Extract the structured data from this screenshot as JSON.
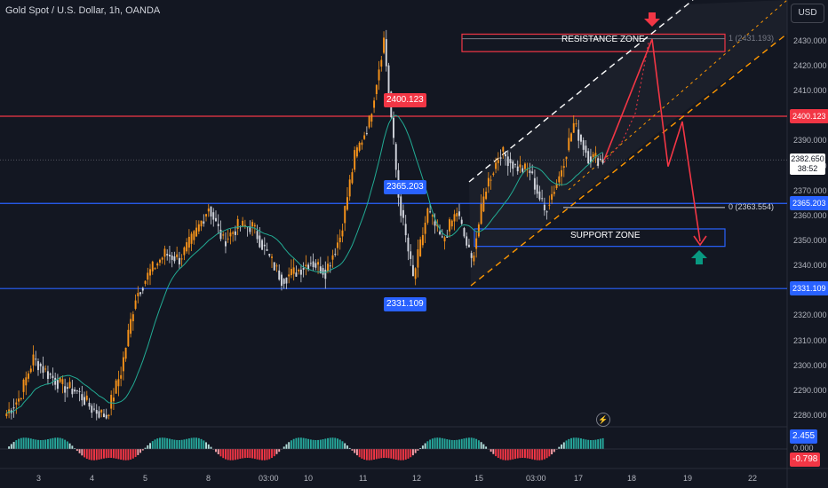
{
  "header": {
    "title": "Gold Spot / U.S. Dollar, 1h, OANDA"
  },
  "currency_button": "USD",
  "price_axis": {
    "ticks": [
      "2430.000",
      "2420.000",
      "2410.000",
      "2400.000",
      "2390.000",
      "2380.000",
      "2370.000",
      "2360.000",
      "2350.000",
      "2340.000",
      "2330.000",
      "2320.000",
      "2310.000",
      "2300.000",
      "2290.000",
      "2280.000"
    ],
    "last_price": "2382.650",
    "countdown": "38:52",
    "level_tags": [
      {
        "label": "2400.123",
        "color": "#f23645"
      },
      {
        "label": "2365.203",
        "color": "#2962ff"
      },
      {
        "label": "2331.109",
        "color": "#2962ff"
      }
    ]
  },
  "time_axis": {
    "labels": [
      "3",
      "4",
      "5",
      "8",
      "03:00",
      "10",
      "11",
      "12",
      "15",
      "03:00",
      "17",
      "18",
      "19",
      "22"
    ]
  },
  "level_labels": [
    {
      "label": "2400.123",
      "color": "#f23645"
    },
    {
      "label": "2365.203",
      "color": "#2962ff"
    },
    {
      "label": "2331.109",
      "color": "#2962ff"
    }
  ],
  "zones": {
    "resistance": "RESISTANCE ZONE",
    "support": "SUPPORT ZONE"
  },
  "fib": {
    "top": "1 (2431.193)",
    "bottom": "0 (2363.554)"
  },
  "oscillator": {
    "value_pos": "2.455",
    "zero": "0.000",
    "value_neg": "-0.798"
  },
  "colors": {
    "background": "#131722",
    "bull_candle": "#f7931a",
    "bear_candle": "#d1d4dc",
    "resistance": "#f23645",
    "support": "#2962ff",
    "ma": "#22ab94",
    "channel_upper": "#ffffff",
    "channel_lower": "#ff9800",
    "projection": "#f23645",
    "arrow_down": "#f23645",
    "arrow_up": "#089981"
  },
  "chart_data": {
    "type": "candlestick",
    "symbol": "XAUUSD",
    "timeframe": "1h",
    "ylim": [
      2276,
      2438
    ],
    "x_labels": [
      "3",
      "4",
      "5",
      "8",
      "03:00",
      "10",
      "11",
      "12",
      "15",
      "03:00",
      "17",
      "18",
      "19",
      "22"
    ],
    "close_path": [
      {
        "t": "3",
        "price": 2280
      },
      {
        "t": "3",
        "price": 2287
      },
      {
        "t": "4",
        "price": 2303
      },
      {
        "t": "4",
        "price": 2297
      },
      {
        "t": "4",
        "price": 2292
      },
      {
        "t": "5",
        "price": 2290
      },
      {
        "t": "5",
        "price": 2283
      },
      {
        "t": "5",
        "price": 2280
      },
      {
        "t": "8",
        "price": 2298
      },
      {
        "t": "8",
        "price": 2328
      },
      {
        "t": "8",
        "price": 2338
      },
      {
        "t": "03:00",
        "price": 2345
      },
      {
        "t": "03:00",
        "price": 2343
      },
      {
        "t": "03:00",
        "price": 2352
      },
      {
        "t": "10",
        "price": 2364
      },
      {
        "t": "10",
        "price": 2350
      },
      {
        "t": "10",
        "price": 2356
      },
      {
        "t": "10",
        "price": 2356
      },
      {
        "t": "11",
        "price": 2345
      },
      {
        "t": "11",
        "price": 2335
      },
      {
        "t": "11",
        "price": 2338
      },
      {
        "t": "11",
        "price": 2342
      },
      {
        "t": "12",
        "price": 2338
      },
      {
        "t": "12",
        "price": 2352
      },
      {
        "t": "12",
        "price": 2384
      },
      {
        "t": "12",
        "price": 2398
      },
      {
        "t": "12",
        "price": 2431
      },
      {
        "t": "15",
        "price": 2368
      },
      {
        "t": "15",
        "price": 2335
      },
      {
        "t": "15",
        "price": 2362
      },
      {
        "t": "15",
        "price": 2350
      },
      {
        "t": "15",
        "price": 2362
      },
      {
        "t": "03:00",
        "price": 2342
      },
      {
        "t": "03:00",
        "price": 2372
      },
      {
        "t": "03:00",
        "price": 2386
      },
      {
        "t": "03:00",
        "price": 2380
      },
      {
        "t": "03:00",
        "price": 2378
      },
      {
        "t": "17",
        "price": 2362
      },
      {
        "t": "17",
        "price": 2376
      },
      {
        "t": "17",
        "price": 2397
      },
      {
        "t": "17",
        "price": 2384
      },
      {
        "t": "17",
        "price": 2382.65
      }
    ],
    "horizontal_levels": [
      2400.123,
      2365.203,
      2331.109
    ],
    "fib_levels": {
      "1": 2431.193,
      "0": 2363.554
    },
    "resistance_zone": [
      2426,
      2433
    ],
    "support_zone": [
      2348,
      2355
    ],
    "projection_path": [
      2382.65,
      2431,
      2380,
      2398,
      2350
    ],
    "oscillator": {
      "last_positive": 2.455,
      "last_negative": -0.798
    }
  }
}
